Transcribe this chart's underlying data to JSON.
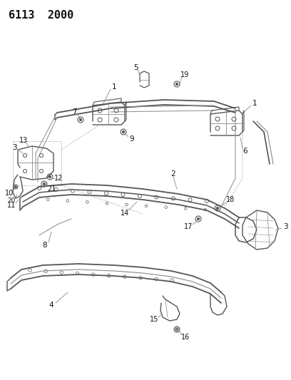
{
  "title": "6113  2000",
  "bg_color": "#ffffff",
  "line_color": "#555555",
  "label_color": "#111111",
  "title_fontsize": 11,
  "label_fontsize": 7
}
